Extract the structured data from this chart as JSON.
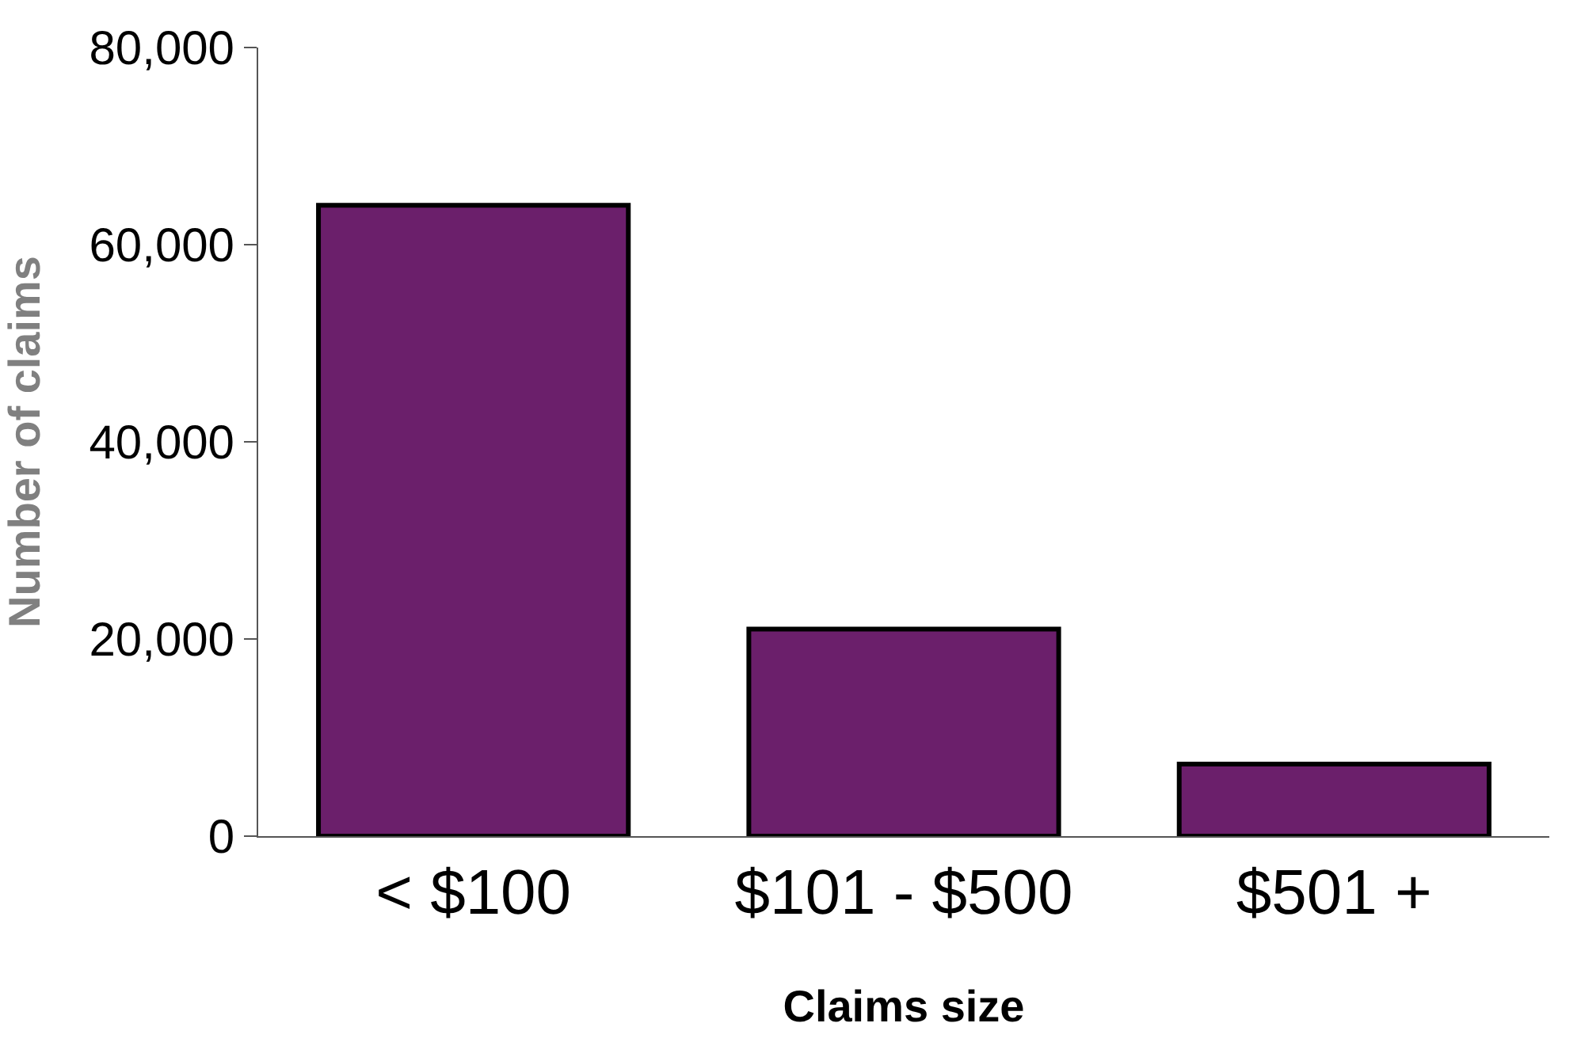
{
  "chart_data": {
    "type": "bar",
    "xlabel": "Claims size",
    "ylabel": "Number of claims",
    "categories": [
      "< $100",
      "$101 - $500",
      "$501 +"
    ],
    "values": [
      64000,
      21000,
      7300
    ],
    "color": "#6b1f6b",
    "ylim": [
      0,
      80000
    ],
    "yticks": [
      {
        "value": 0,
        "label": "0"
      },
      {
        "value": 20000,
        "label": "20,000"
      },
      {
        "value": 40000,
        "label": "40,000"
      },
      {
        "value": 60000,
        "label": "60,000"
      },
      {
        "value": 80000,
        "label": "80,000"
      }
    ],
    "legend": false
  }
}
